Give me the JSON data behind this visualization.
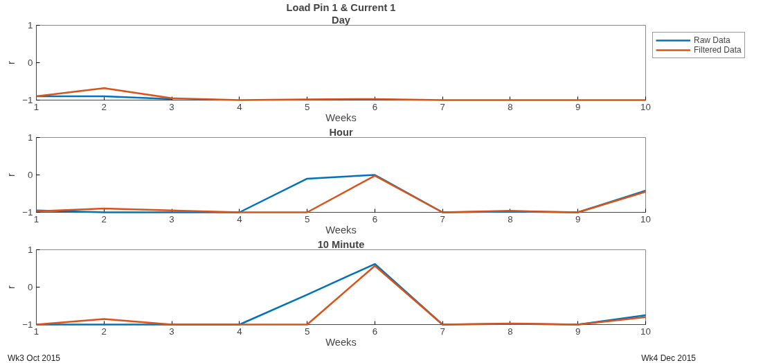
{
  "chart_data": [
    {
      "type": "line",
      "title": "Load Pin 1 & Current 1",
      "subtitle": "Day",
      "xlabel": "Weeks",
      "ylabel": "r",
      "x": [
        1,
        2,
        3,
        4,
        5,
        6,
        7,
        8,
        9,
        10
      ],
      "xlim": [
        1,
        10
      ],
      "xticks": [
        1,
        2,
        3,
        4,
        5,
        6,
        7,
        8,
        9,
        10
      ],
      "ylim": [
        -1,
        1
      ],
      "yticks": [
        -1,
        0,
        1
      ],
      "grid": false,
      "legend": "right",
      "marker": "none",
      "line_style": "solid",
      "series": [
        {
          "name": "Raw Data",
          "color": "#0072bd",
          "values": [
            -0.9,
            -0.9,
            -0.97,
            null,
            null,
            null,
            null,
            null,
            null,
            null
          ]
        },
        {
          "name": "Filtered Data",
          "color": "#d95319",
          "values": [
            -0.9,
            -0.68,
            -0.95,
            -1,
            -0.98,
            -0.97,
            -1,
            -1,
            -1,
            -1
          ]
        }
      ]
    },
    {
      "type": "line",
      "title": "Hour",
      "xlabel": "Weeks",
      "ylabel": "r",
      "x": [
        1,
        2,
        3,
        4,
        5,
        6,
        7,
        8,
        9,
        10
      ],
      "xlim": [
        1,
        10
      ],
      "xticks": [
        1,
        2,
        3,
        4,
        5,
        6,
        7,
        8,
        9,
        10
      ],
      "ylim": [
        -1,
        1
      ],
      "yticks": [
        -1,
        0,
        1
      ],
      "grid": false,
      "marker": "none",
      "line_style": "solid",
      "series": [
        {
          "color": "#0072bd",
          "values": [
            -0.95,
            -1,
            -1,
            -1,
            -0.1,
            0,
            -1,
            -0.98,
            -1,
            -0.42
          ]
        },
        {
          "color": "#d95319",
          "values": [
            -0.97,
            -0.9,
            -0.95,
            -1,
            -1,
            -0.02,
            -1,
            -0.96,
            -1,
            -0.45
          ]
        }
      ]
    },
    {
      "type": "line",
      "title": "10 Minute",
      "xlabel": "Weeks",
      "ylabel": "r",
      "x": [
        1,
        2,
        3,
        4,
        5,
        6,
        7,
        8,
        9,
        10
      ],
      "xlim": [
        1,
        10
      ],
      "xticks": [
        1,
        2,
        3,
        4,
        5,
        6,
        7,
        8,
        9,
        10
      ],
      "ylim": [
        -1,
        1
      ],
      "yticks": [
        -1,
        0,
        1
      ],
      "grid": false,
      "marker": "none",
      "line_style": "solid",
      "annotations": [
        "Wk3 Oct 2015",
        "Wk4 Dec 2015"
      ],
      "series": [
        {
          "color": "#0072bd",
          "values": [
            -1,
            -1,
            -1,
            -1,
            -0.2,
            0.62,
            -1,
            -0.98,
            -1,
            -0.75
          ]
        },
        {
          "color": "#d95319",
          "values": [
            -1,
            -0.85,
            -1,
            -1,
            -1,
            0.57,
            -1,
            -0.97,
            -1,
            -0.8
          ]
        }
      ]
    }
  ]
}
